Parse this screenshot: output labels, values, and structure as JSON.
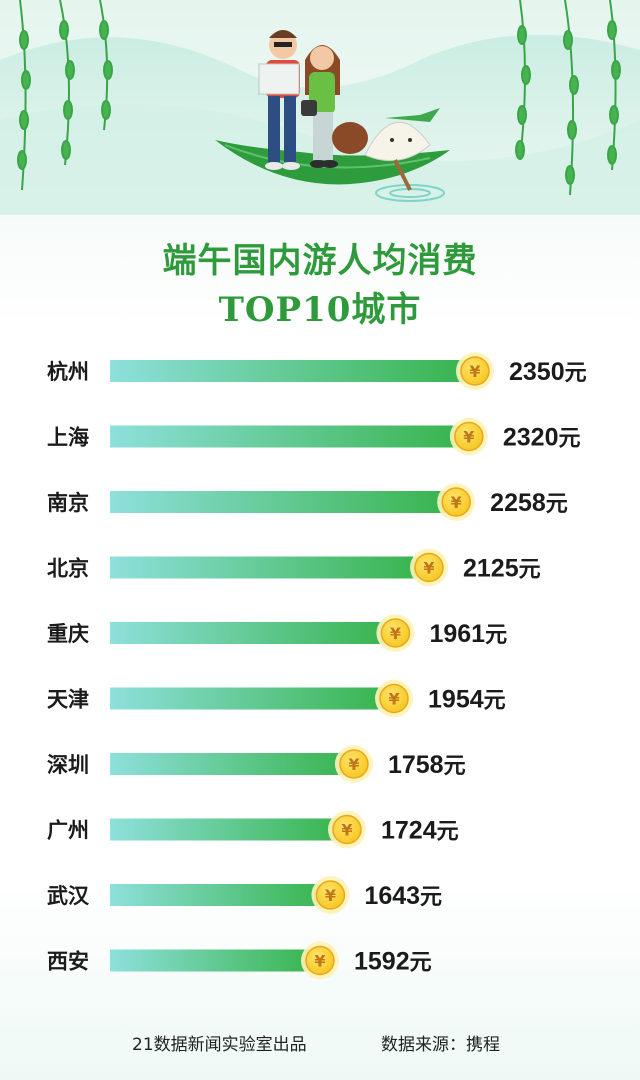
{
  "title_line1": "端午国内游人均消费",
  "title_line2": "TOP10城市",
  "unit": "元",
  "coin_symbol": "¥",
  "colors": {
    "title": "#2f9a3c",
    "bar_start": "#8ee0dc",
    "bar_end": "#36b34a",
    "coin": "#f7c51f",
    "leaf": "#2e9c3d"
  },
  "chart_data": {
    "type": "bar",
    "orientation": "horizontal",
    "categories": [
      "杭州",
      "上海",
      "南京",
      "北京",
      "重庆",
      "天津",
      "深圳",
      "广州",
      "武汉",
      "西安"
    ],
    "values": [
      2350,
      2320,
      2258,
      2125,
      1961,
      1954,
      1758,
      1724,
      1643,
      1592
    ]
  },
  "footer": {
    "producer": "21数据新闻实验室出品",
    "source": "数据来源：携程"
  }
}
